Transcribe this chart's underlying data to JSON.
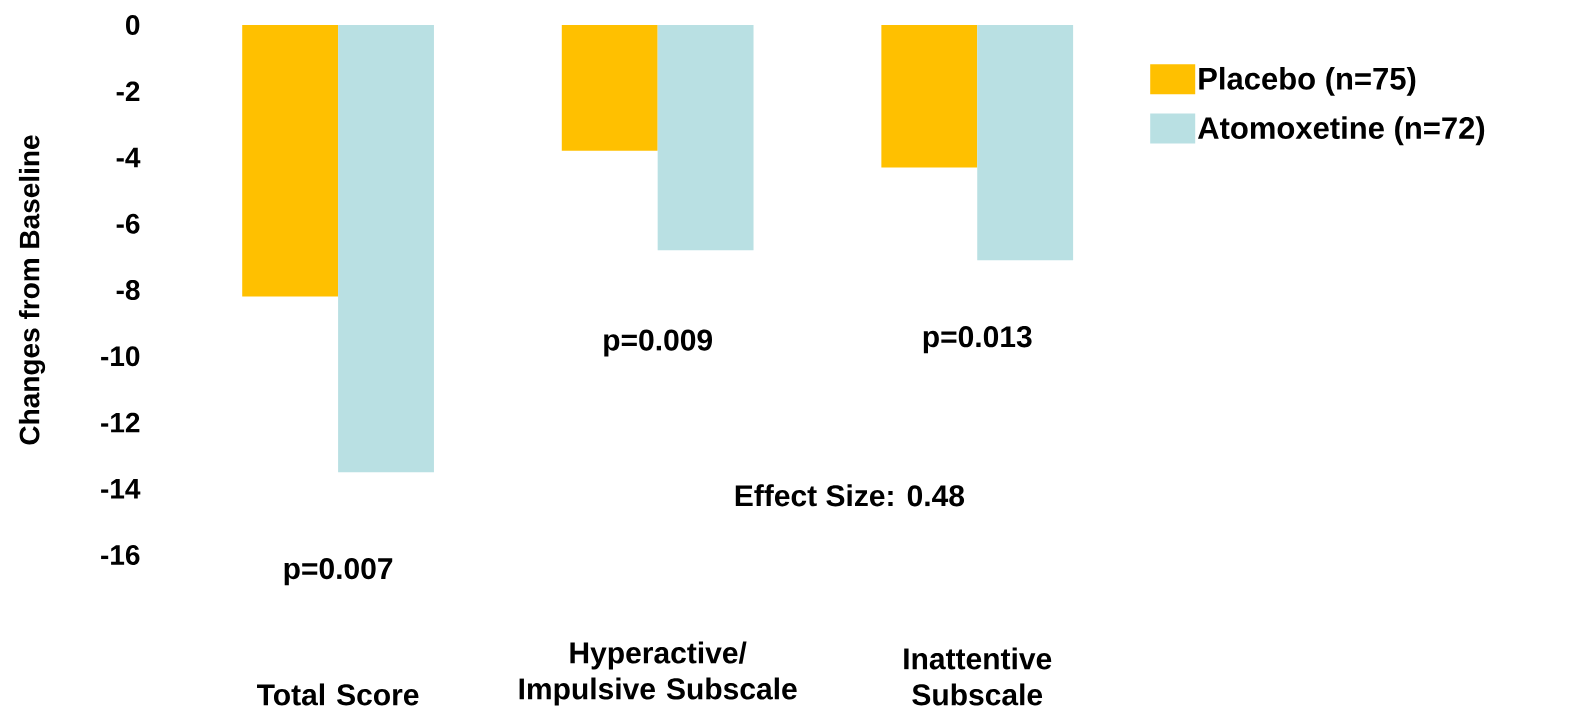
{
  "chart_data": {
    "type": "bar",
    "ylabel": "Changes from Baseline",
    "categories": [
      "Total Score",
      "Hyperactive/ Impulsive Subscale",
      "Inattentive Subscale"
    ],
    "series": [
      {
        "name": "Placebo (n=75)",
        "color": "#ffc000",
        "values": [
          -8.2,
          -3.8,
          -4.3
        ]
      },
      {
        "name": "Atomoxetine (n=72)",
        "color": "#b9e0e3",
        "values": [
          -13.5,
          -6.8,
          -7.1
        ]
      }
    ],
    "ylim": [
      -16,
      0
    ],
    "yticks": [
      0,
      -2,
      -4,
      -6,
      -8,
      -10,
      -12,
      -14,
      -16
    ],
    "grid": false,
    "legend": "right",
    "annotations": [
      "p=0.007",
      "p=0.009",
      "p=0.013",
      "Effect Size: 0.48"
    ]
  }
}
